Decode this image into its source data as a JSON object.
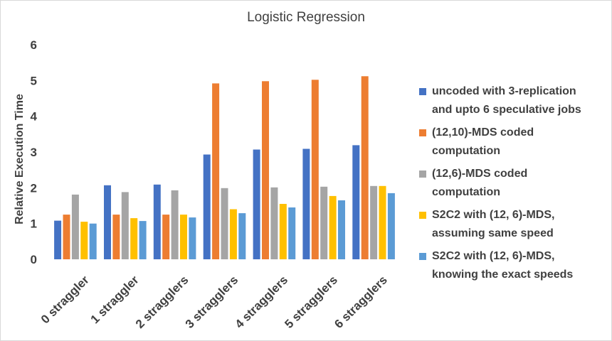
{
  "chart_data": {
    "type": "bar",
    "title": "Logistic Regression",
    "ylabel": "Relative Execution Time",
    "xlabel": "",
    "ylim": [
      0,
      6
    ],
    "yticks": [
      0,
      1,
      2,
      3,
      4,
      5,
      6
    ],
    "grid": false,
    "legend_position": "right",
    "categories": [
      "0 straggler",
      "1 straggler",
      "2 stragglers",
      "3 stragglers",
      "4 stragglers",
      "5 stragglers",
      "6 stragglers"
    ],
    "series": [
      {
        "name_lines": [
          "uncoded with 3-replication",
          "and upto 6 speculative jobs"
        ],
        "color": "#4472c4",
        "values": [
          1.08,
          2.07,
          2.09,
          2.93,
          3.07,
          3.09,
          3.19
        ]
      },
      {
        "name_lines": [
          "(12,10)-MDS coded",
          "computation"
        ],
        "color": "#ed7d31",
        "values": [
          1.25,
          1.25,
          1.25,
          4.92,
          4.98,
          5.02,
          5.12
        ]
      },
      {
        "name_lines": [
          "(12,6)-MDS coded",
          "computation"
        ],
        "color": "#a5a5a5",
        "values": [
          1.81,
          1.88,
          1.93,
          1.99,
          2.01,
          2.03,
          2.05
        ]
      },
      {
        "name_lines": [
          "S2C2 with (12, 6)-MDS,",
          "assuming same speed"
        ],
        "color": "#ffc000",
        "values": [
          1.05,
          1.15,
          1.25,
          1.4,
          1.55,
          1.77,
          2.05
        ]
      },
      {
        "name_lines": [
          "S2C2 with (12, 6)-MDS,",
          "knowing the exact speeds"
        ],
        "color": "#5b9bd5",
        "values": [
          1.0,
          1.07,
          1.17,
          1.29,
          1.45,
          1.65,
          1.85
        ]
      }
    ]
  }
}
